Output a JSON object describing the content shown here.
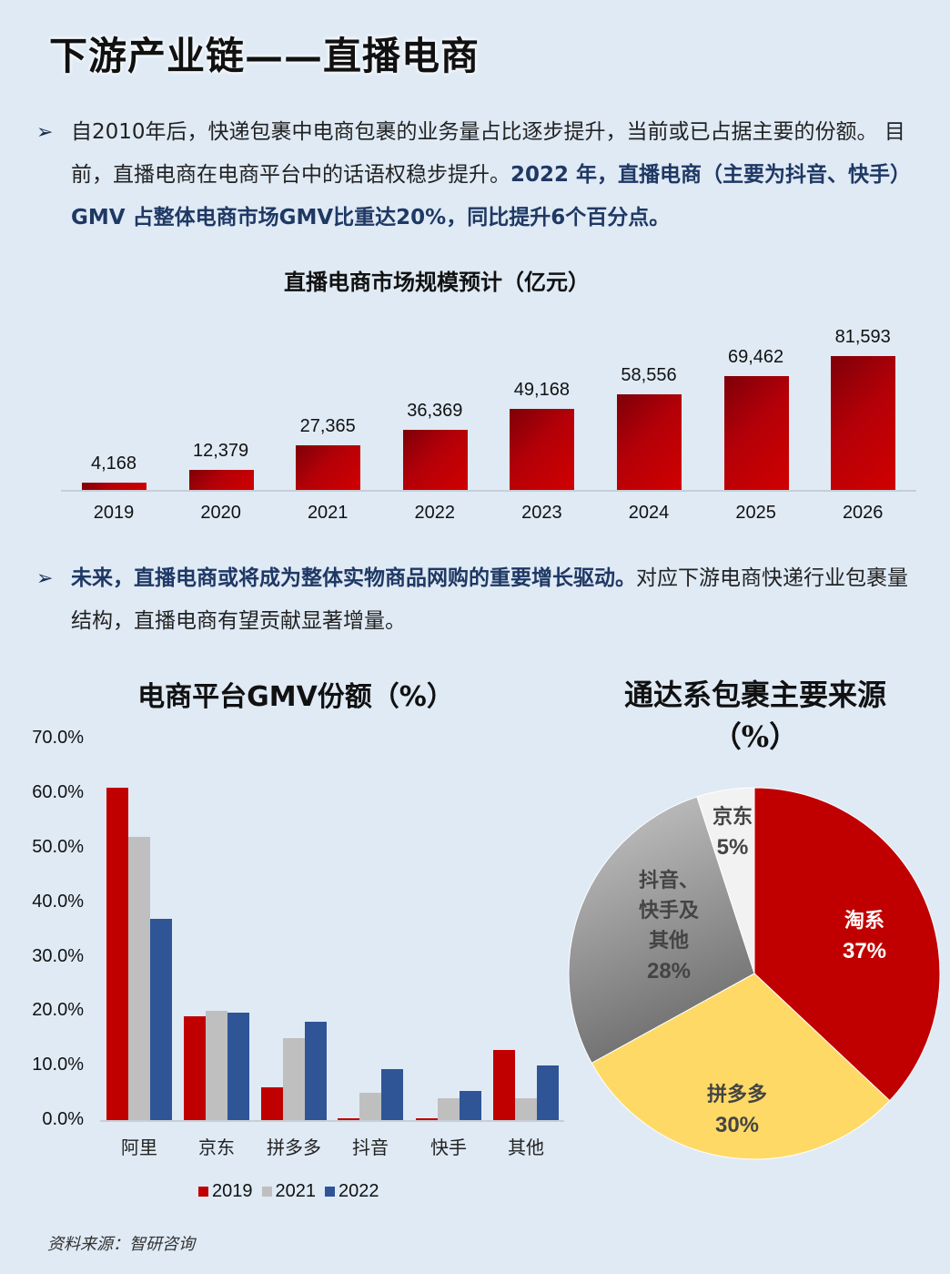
{
  "page": {
    "title": "下游产业链——直播电商",
    "source_label": "资料来源：智研咨询"
  },
  "paragraph1": {
    "bullet_icon": "arrow-bullet",
    "text_normal": "自2010年后，快递包裹中电商包裹的业务量占比逐步提升，当前或已占据主要的份额。 目前，直播电商在电商平台中的话语权稳步提升。",
    "text_highlight": "2022 年，直播电商（主要为抖音、快手）GMV 占整体电商市场GMV比重达20%，同比提升6个百分点。"
  },
  "paragraph2": {
    "bullet_icon": "arrow-bullet",
    "text_highlight": "未来，直播电商或将成为整体实物商品网购的重要增长驱动。",
    "text_normal": "对应下游电商快递行业包裹量结构，直播电商有望贡献显著增量。"
  },
  "colors": {
    "background": "#dfeaf5",
    "highlight_text": "#1f3864",
    "red": "#c00000",
    "grey": "#bfbfbf",
    "blue": "#2f5597",
    "yellow": "#ffd966"
  },
  "chart_data": [
    {
      "type": "bar",
      "title": "直播电商市场规模预计（亿元）",
      "categories": [
        "2019",
        "2020",
        "2021",
        "2022",
        "2023",
        "2024",
        "2025",
        "2026"
      ],
      "values": [
        4168,
        12379,
        27365,
        36369,
        49168,
        58556,
        69462,
        81593
      ],
      "value_labels": [
        "4,168",
        "12,379",
        "27,365",
        "36,369",
        "49,168",
        "58,556",
        "69,462",
        "81,593"
      ],
      "xlabel": "",
      "ylabel": "",
      "grid": false,
      "legend": "none"
    },
    {
      "type": "bar",
      "title": "电商平台GMV份额（%）",
      "categories": [
        "阿里",
        "京东",
        "拼多多",
        "抖音",
        "快手",
        "其他"
      ],
      "series": [
        {
          "name": "2019",
          "color": "#c00000",
          "values": [
            61.0,
            19.0,
            6.0,
            0.2,
            0.4,
            12.8
          ]
        },
        {
          "name": "2021",
          "color": "#bfbfbf",
          "values": [
            52.0,
            20.0,
            15.0,
            5.0,
            4.0,
            4.0
          ]
        },
        {
          "name": "2022",
          "color": "#2f5597",
          "values": [
            37.0,
            19.7,
            18.0,
            9.3,
            5.3,
            10.0
          ]
        }
      ],
      "yticks": [
        "0.0%",
        "10.0%",
        "20.0%",
        "30.0%",
        "40.0%",
        "50.0%",
        "60.0%",
        "70.0%"
      ],
      "ylim": [
        0,
        70
      ],
      "legend": "bottom",
      "grid": false
    },
    {
      "type": "pie",
      "title_line1": "通达系包裹主要来源",
      "title_line2": "（%）",
      "slices": [
        {
          "label": "淘系",
          "value": 37,
          "pct": "37%",
          "color": "#c00000"
        },
        {
          "label": "拼多多",
          "value": 30,
          "pct": "30%",
          "color": "#ffd966"
        },
        {
          "label": "抖音、快手及其他",
          "label_lines": [
            "抖音、",
            "快手及",
            "其他"
          ],
          "value": 28,
          "pct": "28%",
          "color": "#a6a6a6"
        },
        {
          "label": "京东",
          "value": 5,
          "pct": "5%",
          "color": "#f2f2f2"
        }
      ]
    }
  ]
}
